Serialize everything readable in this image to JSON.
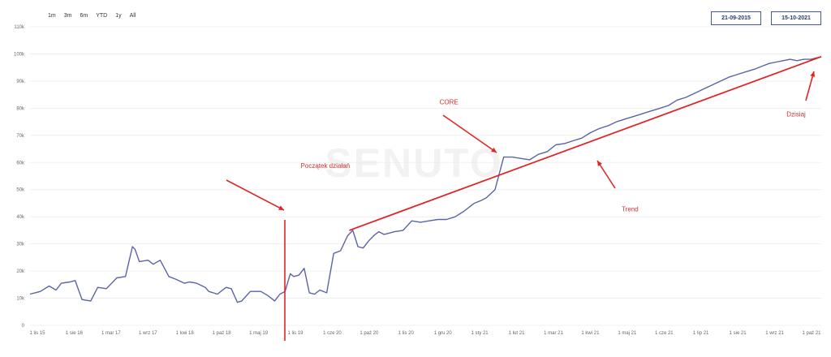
{
  "range_buttons": [
    "1m",
    "3m",
    "6m",
    "YTD",
    "1y",
    "All"
  ],
  "date_from": "21-09-2015",
  "date_to": "15-10-2021",
  "watermark": "SENUTO",
  "colors": {
    "series": "#5a63a8",
    "trend": "#e02525",
    "annotation": "#d03030",
    "grid": "#ececec"
  },
  "chart_data": {
    "type": "line",
    "y_ticks": [
      "0",
      "10k",
      "20k",
      "30k",
      "40k",
      "50k",
      "60k",
      "70k",
      "80k",
      "90k",
      "100k",
      "110k"
    ],
    "ylim": [
      0,
      110000
    ],
    "x_ticks": [
      "1 lis 15",
      "1 sie 16",
      "1 mar 17",
      "1 wrz 17",
      "1 kwi 18",
      "1 paź 18",
      "1 maj 19",
      "1 lis 19",
      "1 cze 20",
      "1 paź 20",
      "1 lis 20",
      "1 gru 20",
      "1 sty 21",
      "1 lut 21",
      "1 mar 21",
      "1 kwi 21",
      "1 maj 21",
      "1 cze 21",
      "1 lip 21",
      "1 sie 21",
      "1 wrz 21",
      "1 paź 21"
    ],
    "series": [
      {
        "x": [
          0,
          0.6,
          1.1,
          1.5,
          1.8,
          2.3,
          2.6,
          3.0,
          3.5,
          3.9,
          4.4,
          5.0,
          5.5,
          5.9,
          6.05,
          6.3,
          6.8,
          7.1,
          7.5,
          8.0,
          8.4,
          8.9,
          9.2,
          9.6,
          10.1,
          10.3,
          10.8,
          11.3,
          11.6,
          11.95,
          12.2,
          12.7,
          13.3,
          13.7,
          14.1,
          14.4,
          14.7,
          15.0,
          15.2,
          15.5,
          15.8,
          16.1,
          16.4,
          16.7,
          17.1,
          17.5,
          17.9,
          18.3,
          18.6,
          18.9,
          19.2,
          19.5,
          19.8,
          20.1,
          20.4,
          20.7,
          21.0,
          21.5,
          22.0,
          22.5,
          23.0,
          23.5,
          24.0,
          24.5,
          25.0,
          25.4,
          25.6,
          26.0,
          26.3,
          26.8,
          27.3,
          27.8,
          28.3,
          28.8,
          29.3,
          29.8,
          30.3,
          30.8,
          31.3,
          31.8,
          32.3,
          32.8,
          33.3,
          33.8,
          34.3,
          34.8,
          35.3,
          35.8,
          36.3,
          36.8,
          37.3,
          37.8,
          38.3,
          38.8,
          39.3,
          39.8,
          40.3,
          40.8,
          41.3,
          41.8,
          42.2,
          42.6,
          43.0,
          43.4,
          43.8,
          44.2,
          44.6,
          45.0,
          45.6
        ],
        "y": [
          11500,
          12500,
          14500,
          13000,
          15500,
          16000,
          16500,
          9500,
          9000,
          14000,
          13500,
          17500,
          18000,
          29000,
          28000,
          23500,
          24000,
          22500,
          24000,
          18000,
          17000,
          15500,
          16000,
          15500,
          14000,
          12500,
          11500,
          14000,
          13500,
          8500,
          9000,
          12500,
          12500,
          11000,
          9000,
          11500,
          12500,
          19000,
          18000,
          18500,
          21000,
          12000,
          11500,
          13000,
          12000,
          26500,
          27500,
          33000,
          35000,
          29000,
          28500,
          31000,
          33000,
          34500,
          33500,
          34000,
          34500,
          35000,
          38500,
          38000,
          38500,
          39000,
          39000,
          40000,
          42000,
          44000,
          45000,
          46000,
          47000,
          50000,
          62000,
          62000,
          61500,
          61000,
          63000,
          64000,
          66500,
          67000,
          68000,
          69000,
          71000,
          72500,
          73500,
          75000,
          76000,
          77000,
          78000,
          79000,
          80000,
          81000,
          83000,
          84000,
          85500,
          87000,
          88500,
          90000,
          91500,
          92500,
          93500,
          94500,
          95500,
          96500,
          97000,
          97500,
          98000,
          97500,
          98000,
          98000,
          99000
        ],
        "min_x": 0,
        "max_x": 45.6
      },
      {
        "x": [
          18.4,
          45.6
        ],
        "y": [
          35000,
          99000
        ]
      }
    ],
    "annotations": [
      {
        "text": "Początek działań",
        "data_x": 15.6,
        "data_y": 58000
      },
      {
        "text": "CORE",
        "data_x": 23.6,
        "data_y": 81500
      },
      {
        "text": "Trend",
        "data_x": 34.1,
        "data_y": 42000
      },
      {
        "text": "Dzisiaj",
        "data_x": 43.6,
        "data_y": 77000
      }
    ]
  }
}
